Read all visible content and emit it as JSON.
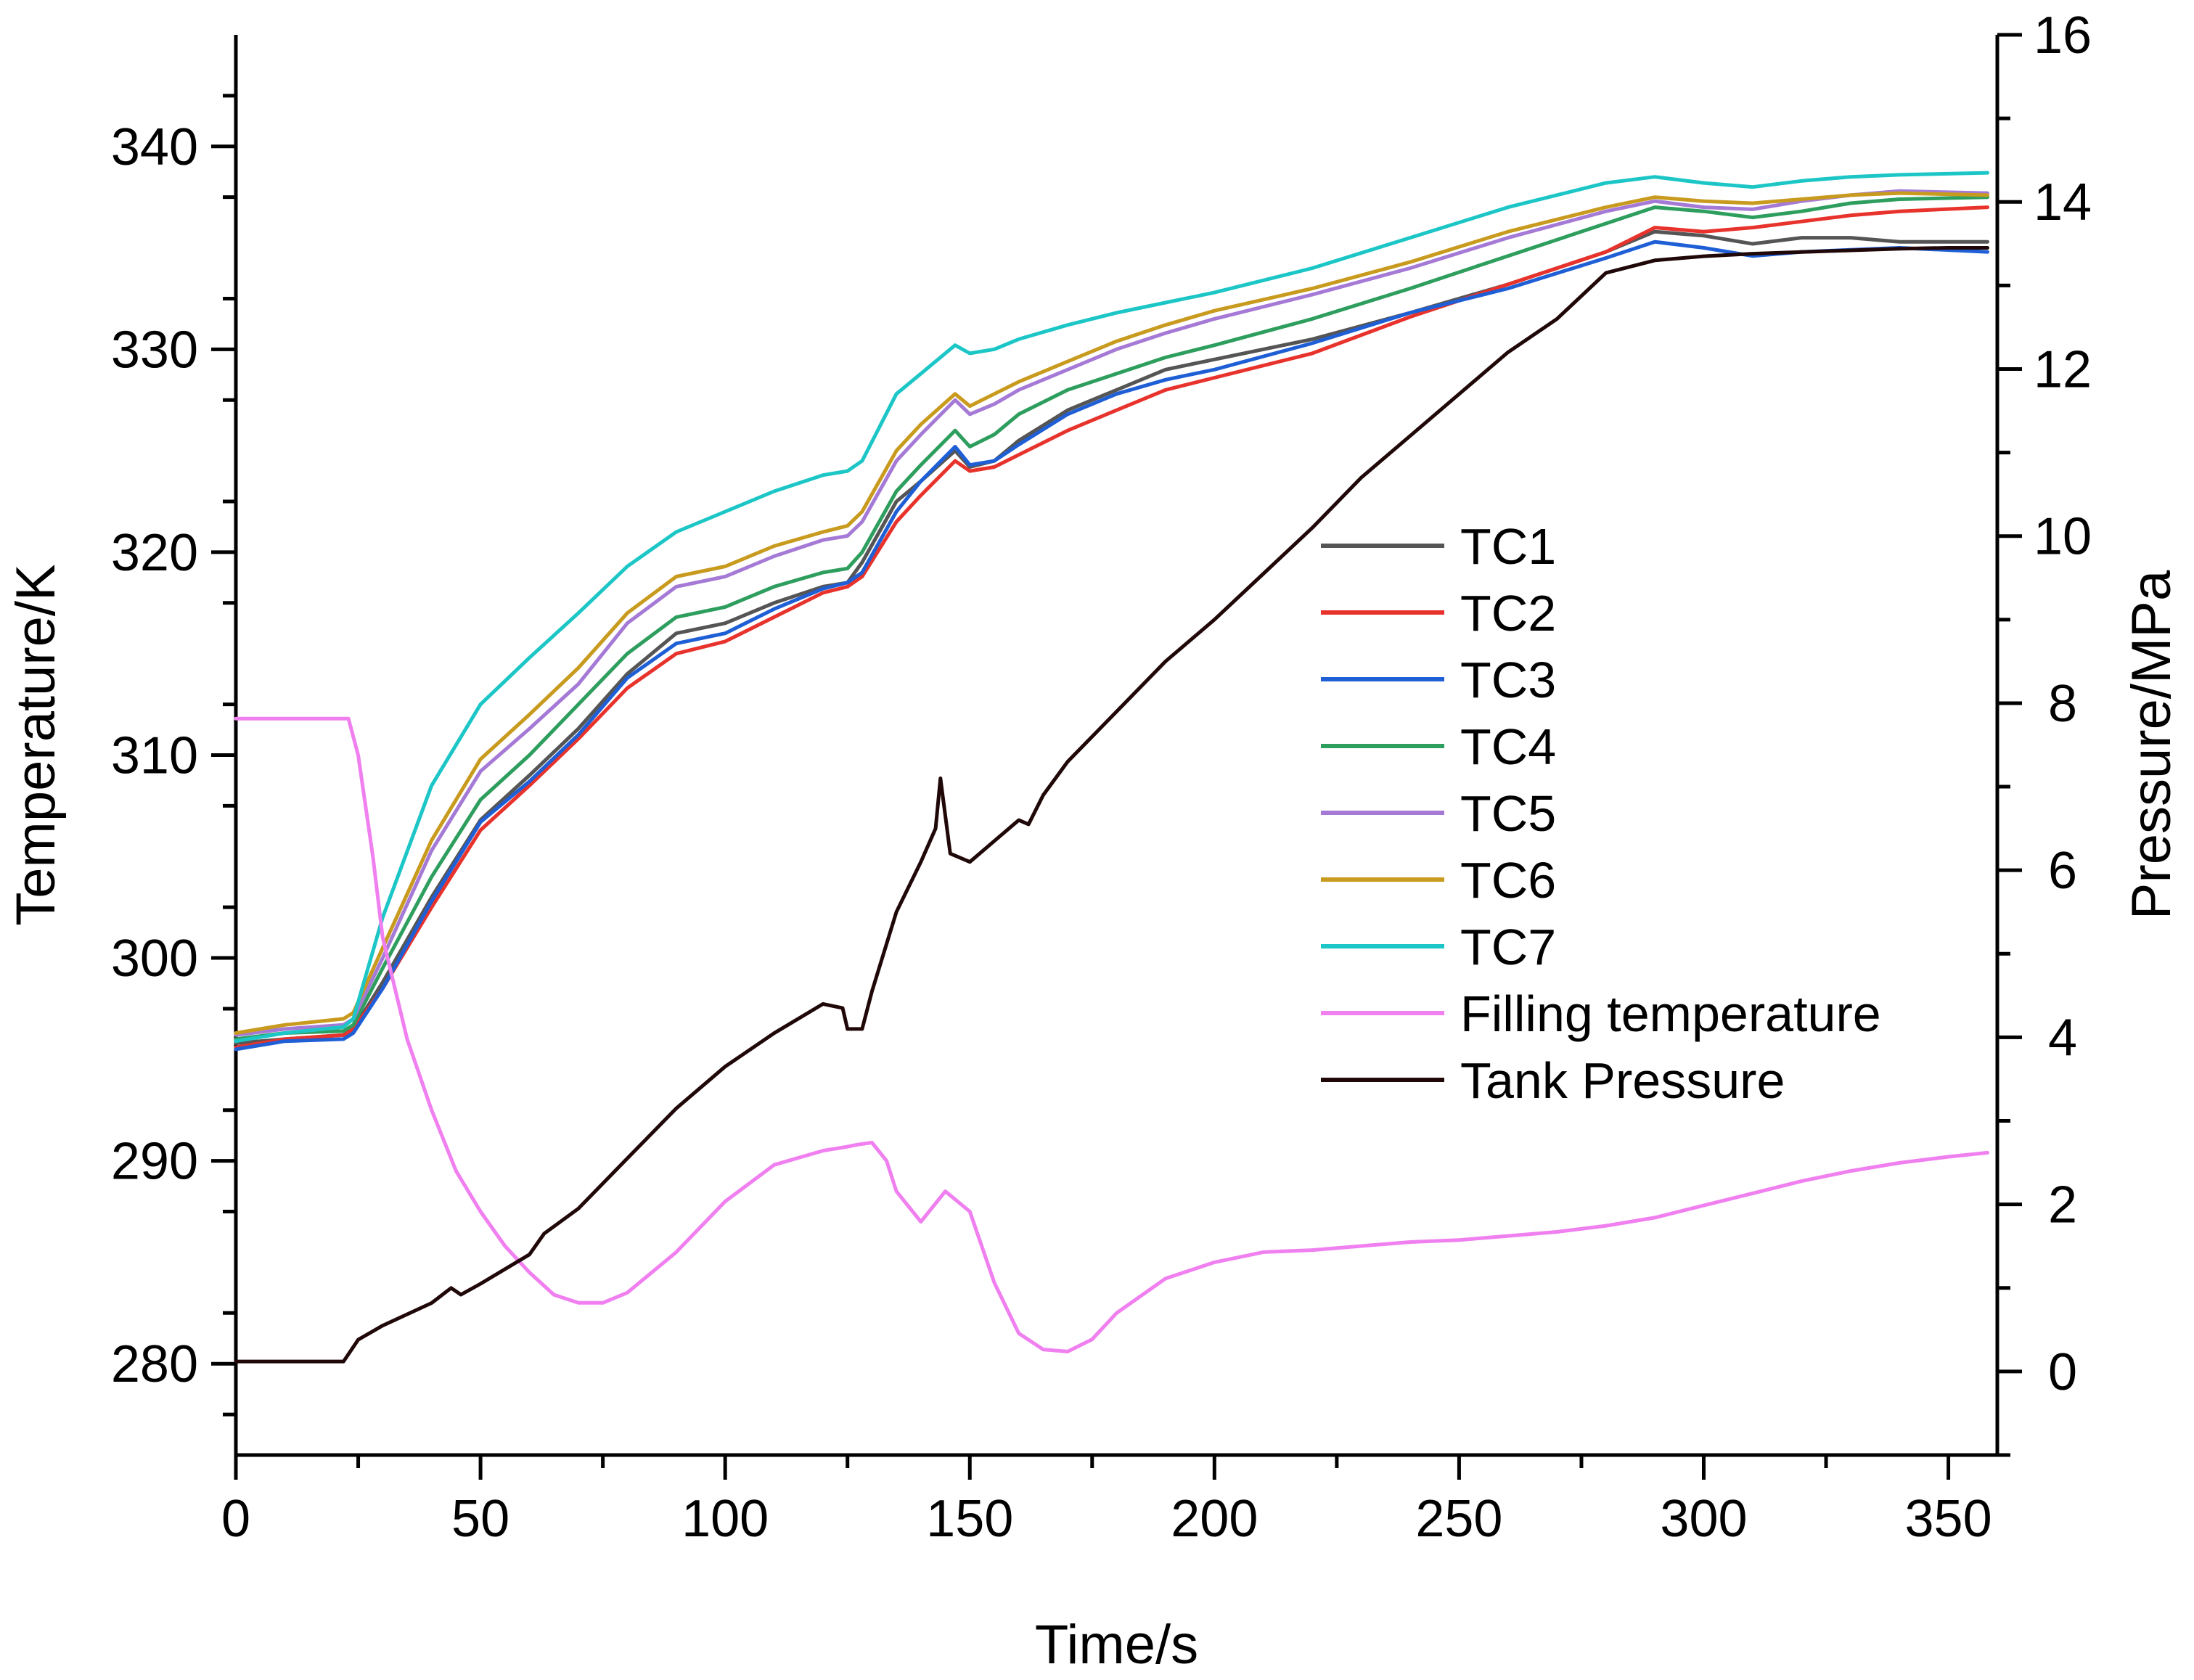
{
  "chart_data": {
    "type": "line",
    "x_axis": {
      "label": "Time/s",
      "ticks": [
        0,
        50,
        100,
        150,
        200,
        250,
        300,
        350
      ],
      "range": [
        0,
        360
      ]
    },
    "y_left": {
      "label": "Temperature/K",
      "ticks": [
        280,
        290,
        300,
        310,
        320,
        330,
        340
      ],
      "range": [
        275.5,
        345.5
      ]
    },
    "y_right": {
      "label": "Pressure/MPa",
      "ticks": [
        0,
        2,
        4,
        6,
        8,
        10,
        12,
        14,
        16
      ],
      "range": [
        -1.0,
        16.0
      ]
    },
    "legend": [
      "TC1",
      "TC2",
      "TC3",
      "TC4",
      "TC5",
      "TC6",
      "TC7",
      "Filling temperature",
      "Tank Pressure"
    ],
    "series": [
      {
        "name": "TC1",
        "color": "#555555",
        "axis": "left",
        "x": [
          0,
          10,
          22,
          24,
          30,
          40,
          50,
          60,
          70,
          80,
          90,
          100,
          110,
          120,
          125,
          128,
          135,
          140,
          147,
          150,
          155,
          160,
          170,
          180,
          190,
          200,
          220,
          240,
          260,
          280,
          290,
          300,
          310,
          320,
          330,
          340,
          358
        ],
        "y": [
          295.8,
          296.0,
          296.2,
          296.5,
          298.8,
          303.0,
          306.8,
          309.0,
          311.3,
          314.0,
          316.0,
          316.5,
          317.5,
          318.3,
          318.5,
          319.5,
          322.5,
          323.5,
          325.0,
          324.2,
          324.5,
          325.5,
          327.0,
          328.0,
          329.0,
          329.5,
          330.5,
          331.8,
          333.2,
          334.8,
          335.8,
          335.6,
          335.2,
          335.5,
          335.5,
          335.3,
          335.3
        ]
      },
      {
        "name": "TC2",
        "color": "#e8322c",
        "axis": "left",
        "x": [
          0,
          10,
          22,
          24,
          30,
          40,
          50,
          60,
          70,
          80,
          90,
          100,
          110,
          120,
          125,
          128,
          135,
          140,
          147,
          150,
          155,
          160,
          170,
          180,
          190,
          200,
          220,
          240,
          260,
          280,
          290,
          300,
          310,
          320,
          330,
          340,
          358
        ],
        "y": [
          295.6,
          296.0,
          296.2,
          296.5,
          298.5,
          302.5,
          306.3,
          308.5,
          310.8,
          313.3,
          315.0,
          315.6,
          316.8,
          318.0,
          318.3,
          318.8,
          321.5,
          322.8,
          324.5,
          324.0,
          324.2,
          324.8,
          326.0,
          327.0,
          328.0,
          328.6,
          329.8,
          331.6,
          333.2,
          334.8,
          336.0,
          335.8,
          336.0,
          336.3,
          336.6,
          336.8,
          337.0
        ]
      },
      {
        "name": "TC3",
        "color": "#1f5fd6",
        "axis": "left",
        "x": [
          0,
          10,
          22,
          24,
          30,
          40,
          50,
          60,
          70,
          80,
          90,
          100,
          110,
          120,
          125,
          128,
          135,
          140,
          147,
          150,
          155,
          160,
          170,
          180,
          190,
          200,
          220,
          240,
          260,
          280,
          290,
          300,
          310,
          320,
          330,
          340,
          358
        ],
        "y": [
          295.5,
          295.9,
          296.0,
          296.3,
          298.5,
          302.8,
          306.7,
          308.7,
          311.0,
          313.8,
          315.5,
          316.0,
          317.2,
          318.2,
          318.5,
          319.0,
          322.0,
          323.5,
          325.2,
          324.3,
          324.5,
          325.3,
          326.8,
          327.8,
          328.5,
          329.0,
          330.3,
          331.8,
          333.0,
          334.5,
          335.3,
          335.0,
          334.6,
          334.8,
          334.9,
          335.0,
          334.8
        ]
      },
      {
        "name": "TC4",
        "color": "#2e9e5e",
        "axis": "left",
        "x": [
          0,
          10,
          22,
          24,
          30,
          40,
          50,
          60,
          70,
          80,
          90,
          100,
          110,
          120,
          125,
          128,
          135,
          140,
          147,
          150,
          155,
          160,
          170,
          180,
          190,
          200,
          220,
          240,
          260,
          280,
          290,
          300,
          310,
          320,
          330,
          340,
          358
        ],
        "y": [
          296.0,
          296.3,
          296.4,
          296.7,
          299.5,
          304.0,
          307.8,
          310.0,
          312.5,
          315.0,
          316.8,
          317.3,
          318.3,
          319.0,
          319.2,
          320.0,
          323.0,
          324.3,
          326.0,
          325.2,
          325.8,
          326.8,
          328.0,
          328.8,
          329.6,
          330.2,
          331.5,
          333.0,
          334.6,
          336.2,
          337.0,
          336.8,
          336.5,
          336.8,
          337.2,
          337.4,
          337.5
        ]
      },
      {
        "name": "TC5",
        "color": "#a57ad6",
        "axis": "left",
        "x": [
          0,
          10,
          22,
          24,
          30,
          40,
          50,
          60,
          70,
          80,
          90,
          100,
          110,
          120,
          125,
          128,
          135,
          140,
          147,
          150,
          155,
          160,
          170,
          180,
          190,
          200,
          220,
          240,
          260,
          280,
          290,
          300,
          310,
          320,
          330,
          340,
          358
        ],
        "y": [
          296.2,
          296.5,
          296.7,
          297.0,
          300.0,
          305.3,
          309.2,
          311.3,
          313.5,
          316.5,
          318.3,
          318.8,
          319.8,
          320.6,
          320.8,
          321.5,
          324.5,
          325.8,
          327.5,
          326.8,
          327.3,
          328.0,
          329.0,
          330.0,
          330.8,
          331.5,
          332.7,
          334.0,
          335.5,
          336.8,
          337.3,
          337.0,
          336.9,
          337.3,
          337.6,
          337.8,
          337.7
        ]
      },
      {
        "name": "TC6",
        "color": "#c89a1e",
        "axis": "left",
        "x": [
          0,
          10,
          22,
          24,
          30,
          40,
          50,
          60,
          70,
          80,
          90,
          100,
          110,
          120,
          125,
          128,
          135,
          140,
          147,
          150,
          155,
          160,
          170,
          180,
          190,
          200,
          220,
          240,
          260,
          280,
          290,
          300,
          310,
          320,
          330,
          340,
          358
        ],
        "y": [
          296.3,
          296.7,
          297.0,
          297.3,
          300.5,
          305.8,
          309.8,
          312.0,
          314.3,
          317.0,
          318.8,
          319.3,
          320.3,
          321.0,
          321.3,
          322.0,
          325.0,
          326.3,
          327.8,
          327.2,
          327.8,
          328.4,
          329.4,
          330.4,
          331.2,
          331.9,
          333.0,
          334.3,
          335.8,
          337.0,
          337.5,
          337.3,
          337.2,
          337.4,
          337.6,
          337.7,
          337.6
        ]
      },
      {
        "name": "TC7",
        "color": "#1dc6c6",
        "axis": "left",
        "x": [
          0,
          10,
          22,
          24,
          30,
          40,
          50,
          60,
          70,
          80,
          90,
          100,
          110,
          120,
          125,
          128,
          135,
          140,
          147,
          150,
          155,
          160,
          170,
          180,
          190,
          200,
          220,
          240,
          260,
          280,
          290,
          300,
          310,
          320,
          330,
          340,
          358
        ],
        "y": [
          295.9,
          296.3,
          296.6,
          297.0,
          302.0,
          308.5,
          312.5,
          314.8,
          317.0,
          319.3,
          321.0,
          322.0,
          323.0,
          323.8,
          324.0,
          324.5,
          327.8,
          328.8,
          330.2,
          329.8,
          330.0,
          330.5,
          331.2,
          331.8,
          332.3,
          332.8,
          334.0,
          335.5,
          337.0,
          338.2,
          338.5,
          338.2,
          338.0,
          338.3,
          338.5,
          338.6,
          338.7
        ]
      },
      {
        "name": "Filling temperature",
        "color": "#f07ff0",
        "axis": "left",
        "x": [
          0,
          10,
          20,
          23,
          25,
          28,
          30,
          35,
          40,
          45,
          50,
          55,
          60,
          65,
          70,
          75,
          80,
          90,
          100,
          110,
          120,
          125,
          127,
          130,
          133,
          135,
          140,
          145,
          150,
          155,
          160,
          165,
          170,
          175,
          180,
          190,
          200,
          210,
          220,
          230,
          240,
          250,
          260,
          270,
          280,
          290,
          300,
          310,
          320,
          330,
          340,
          350,
          358
        ],
        "y": [
          311.8,
          311.8,
          311.8,
          311.8,
          310.0,
          305.0,
          301.0,
          296.0,
          292.5,
          289.5,
          287.5,
          285.8,
          284.5,
          283.4,
          283.0,
          283.0,
          283.5,
          285.5,
          288.0,
          289.8,
          290.5,
          290.7,
          290.8,
          290.9,
          290.0,
          288.5,
          287.0,
          288.5,
          287.5,
          284.0,
          281.5,
          280.7,
          280.6,
          281.2,
          282.5,
          284.2,
          285.0,
          285.5,
          285.6,
          285.8,
          286.0,
          286.1,
          286.3,
          286.5,
          286.8,
          287.2,
          287.8,
          288.4,
          289.0,
          289.5,
          289.9,
          290.2,
          290.4
        ]
      },
      {
        "name": "Tank Pressure",
        "color": "#200808",
        "axis": "right",
        "x": [
          0,
          10,
          20,
          22,
          25,
          30,
          40,
          44,
          46,
          50,
          60,
          63,
          70,
          80,
          90,
          100,
          110,
          120,
          124,
          125,
          128,
          130,
          135,
          140,
          143,
          144,
          146,
          148,
          150,
          155,
          160,
          162,
          165,
          170,
          180,
          190,
          200,
          210,
          220,
          230,
          240,
          250,
          260,
          270,
          280,
          290,
          300,
          310,
          320,
          330,
          340,
          350,
          358
        ],
        "y": [
          0.12,
          0.12,
          0.12,
          0.12,
          0.38,
          0.55,
          0.82,
          1.0,
          0.92,
          1.05,
          1.4,
          1.65,
          1.95,
          2.55,
          3.15,
          3.65,
          4.05,
          4.4,
          4.35,
          4.1,
          4.1,
          4.55,
          5.5,
          6.1,
          6.5,
          7.1,
          6.2,
          6.15,
          6.1,
          6.35,
          6.6,
          6.55,
          6.9,
          7.3,
          7.9,
          8.5,
          9.0,
          9.55,
          10.1,
          10.7,
          11.2,
          11.7,
          12.2,
          12.6,
          13.15,
          13.3,
          13.35,
          13.38,
          13.4,
          13.42,
          13.44,
          13.45,
          13.45
        ]
      }
    ]
  }
}
